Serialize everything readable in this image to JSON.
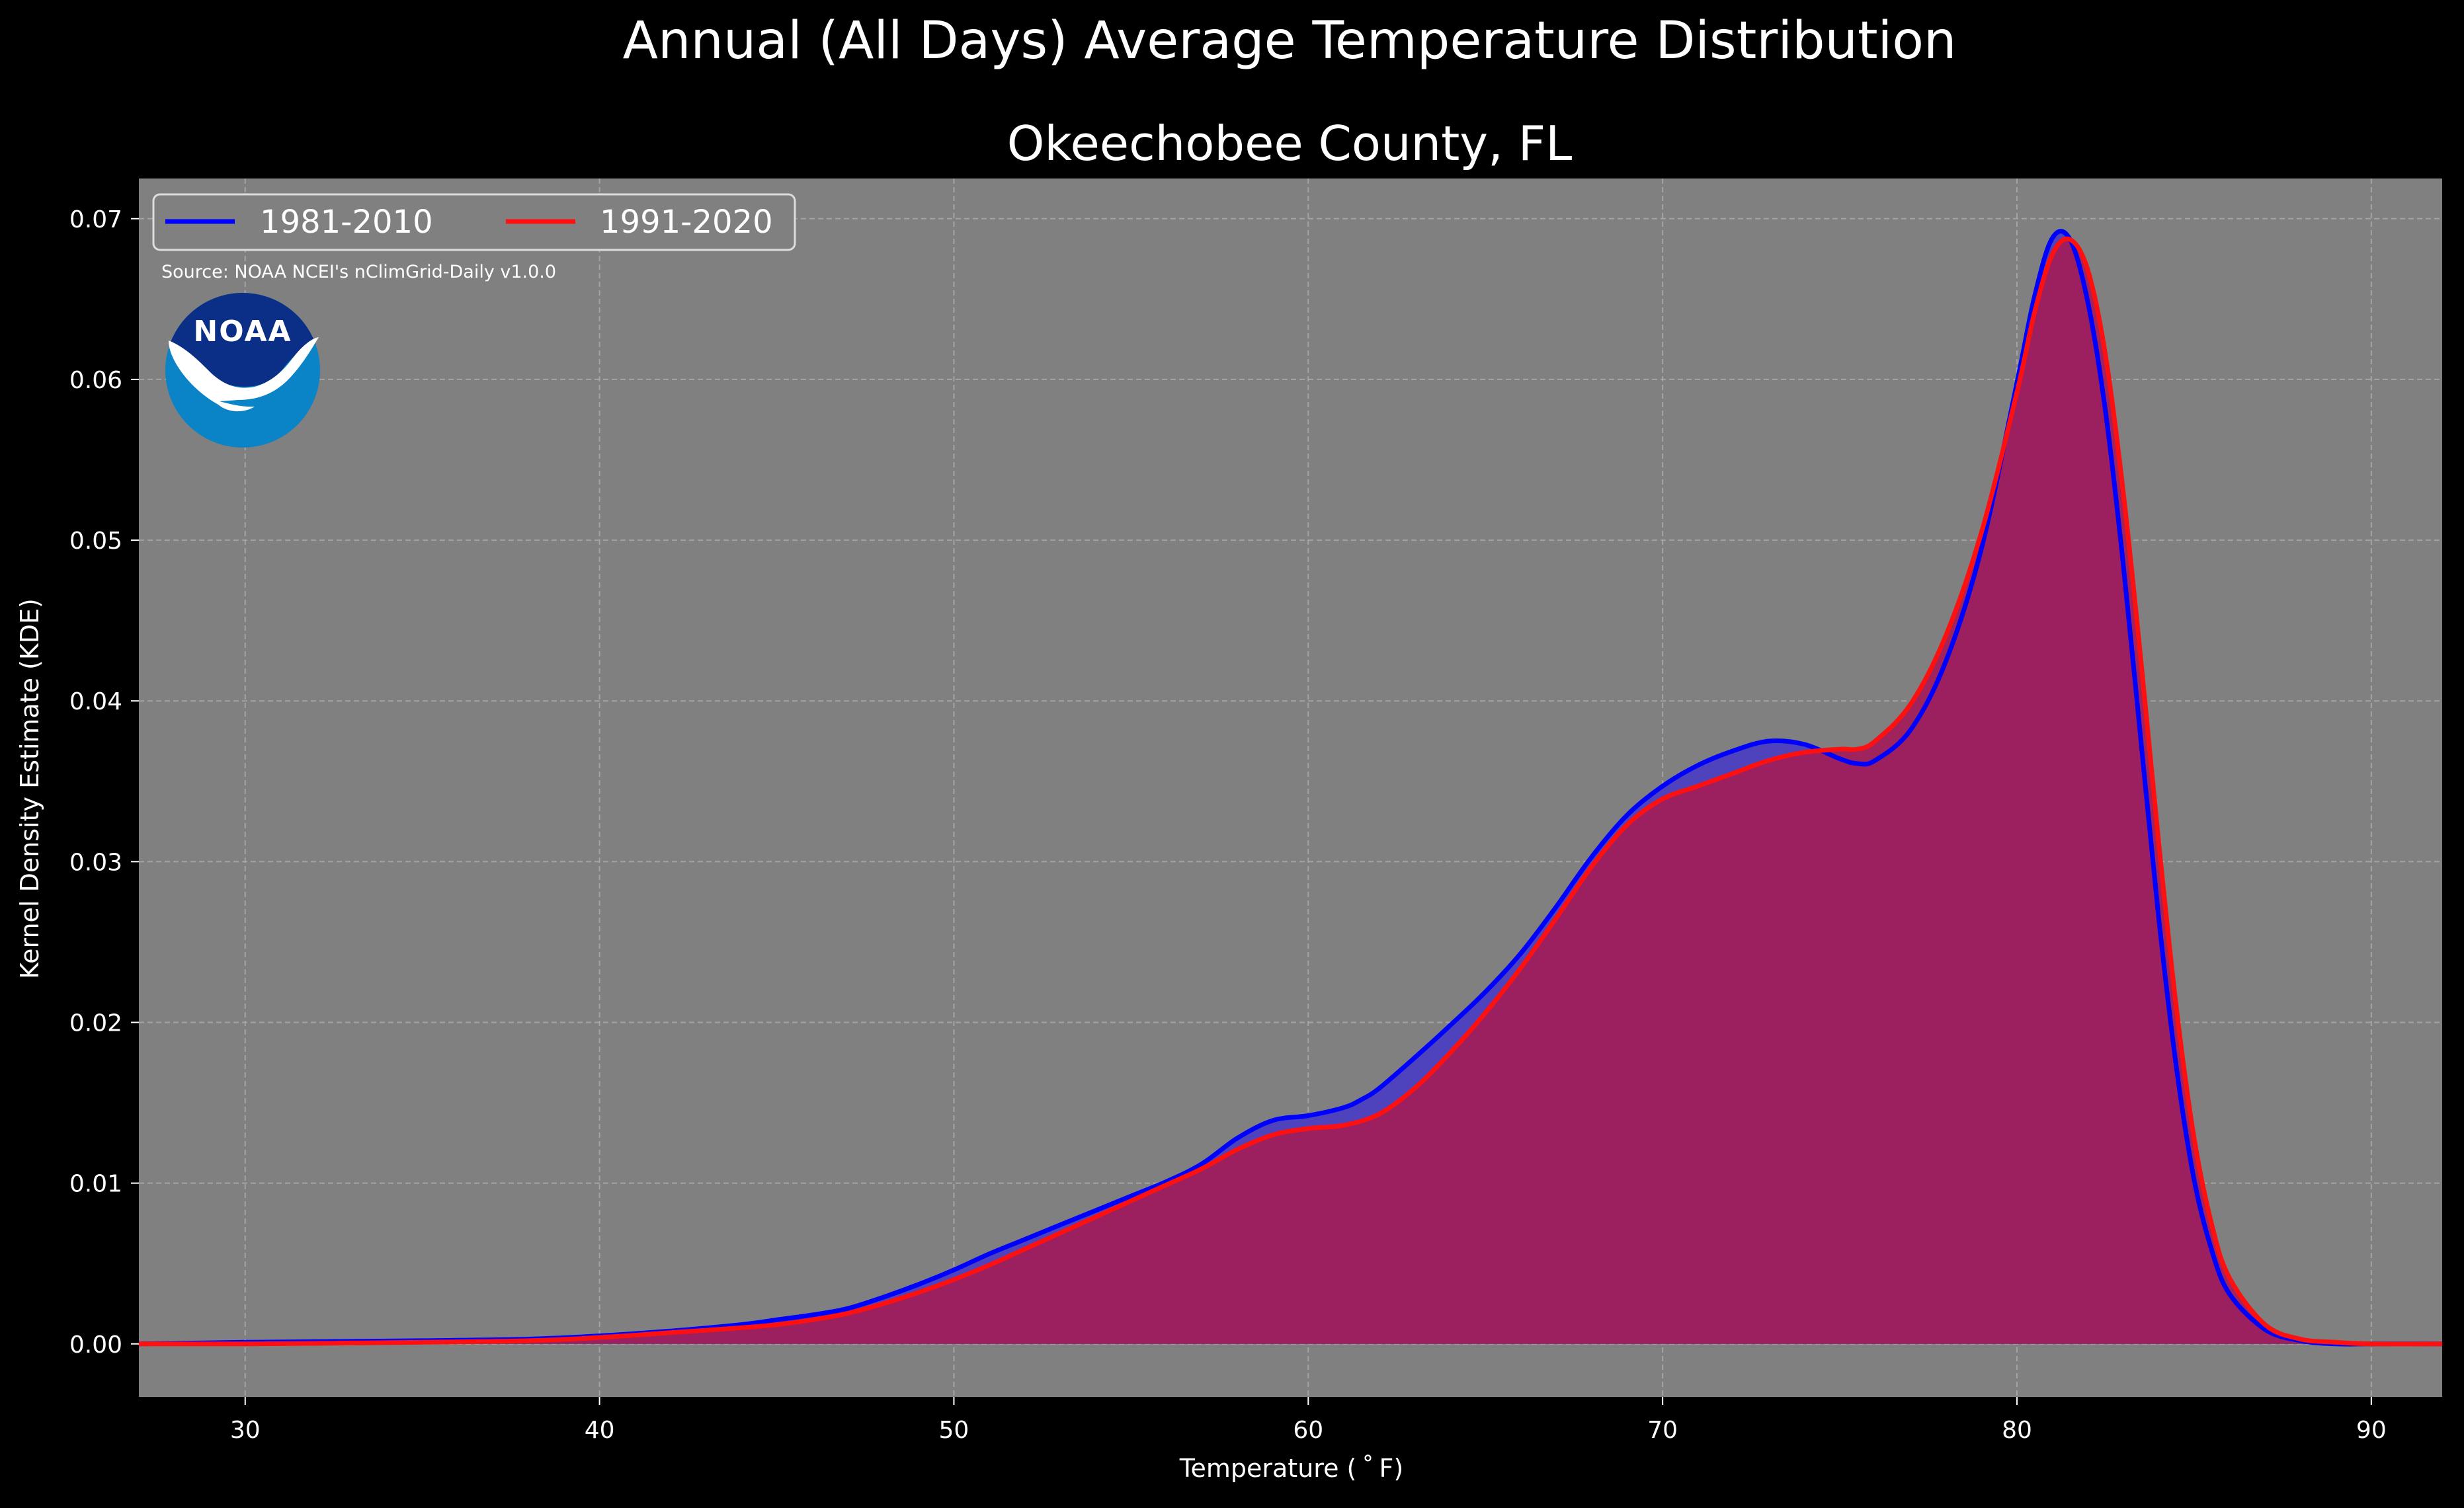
{
  "chart_data": {
    "type": "area",
    "suptitle": "Annual (All Days) Average Temperature Distribution",
    "title": "Okeechobee County, FL",
    "xlabel": "Temperature ($^\\circ$F)",
    "xlabel_display": "Temperature ( ˚ F)",
    "ylabel": "Kernel Density Estimate (KDE)",
    "xlim": [
      27,
      92
    ],
    "ylim": [
      -0.0033,
      0.0725
    ],
    "xticks": [
      30,
      40,
      50,
      60,
      70,
      80,
      90
    ],
    "yticks": [
      0.0,
      0.01,
      0.02,
      0.03,
      0.04,
      0.05,
      0.06,
      0.07
    ],
    "ytick_labels": [
      "0.00",
      "0.01",
      "0.02",
      "0.03",
      "0.04",
      "0.05",
      "0.06",
      "0.07"
    ],
    "grid": true,
    "legend_position": "top-left",
    "source_note": "Source: NOAA NCEI's nClimGrid-Daily v1.0.0",
    "logo_text": "NOAA",
    "colors": {
      "figure_background": "#000000",
      "axes_background": "#808080",
      "grid": "#b3b3b3",
      "text": "#ffffff",
      "fill_1981": "#4b3fbf",
      "fill_1991": "#a01e5a",
      "noaa_dark": "#0b2f86",
      "noaa_light": "#0a84c6"
    },
    "series": [
      {
        "name": "1981-2010",
        "color": "#0000ff",
        "x": [
          27,
          30,
          35,
          38,
          40,
          42,
          44,
          45,
          46,
          47,
          48,
          49,
          50,
          51,
          52,
          53,
          54,
          55,
          56,
          57,
          58,
          59,
          60,
          61,
          61.5,
          62,
          63,
          64,
          65,
          66,
          67,
          68,
          69,
          70,
          71,
          72,
          73,
          74,
          75,
          75.5,
          76,
          77,
          78,
          79,
          80,
          80.5,
          81,
          81.5,
          82,
          82.5,
          83,
          83.5,
          84,
          84.5,
          85,
          85.5,
          86,
          87,
          88,
          89,
          90,
          92
        ],
        "y": [
          0.0,
          0.0001,
          0.0002,
          0.0003,
          0.0005,
          0.0008,
          0.0012,
          0.0015,
          0.0018,
          0.0022,
          0.0029,
          0.0037,
          0.0046,
          0.0056,
          0.0065,
          0.0074,
          0.0083,
          0.0092,
          0.0101,
          0.0112,
          0.0128,
          0.0139,
          0.0142,
          0.0147,
          0.0152,
          0.0159,
          0.0178,
          0.0198,
          0.0219,
          0.0243,
          0.0272,
          0.0303,
          0.0329,
          0.0347,
          0.036,
          0.0369,
          0.0375,
          0.0373,
          0.0364,
          0.0361,
          0.0363,
          0.0382,
          0.0425,
          0.0495,
          0.0598,
          0.0652,
          0.0688,
          0.0687,
          0.0648,
          0.058,
          0.0485,
          0.0375,
          0.0265,
          0.0172,
          0.0102,
          0.0058,
          0.0031,
          0.0009,
          0.0002,
          0.0,
          0.0,
          0.0
        ]
      },
      {
        "name": "1991-2020",
        "color": "#ff1010",
        "x": [
          27,
          30,
          35,
          38,
          40,
          42,
          44,
          45,
          46,
          47,
          48,
          49,
          50,
          51,
          52,
          53,
          54,
          55,
          56,
          57,
          58,
          59,
          60,
          61,
          62,
          63,
          64,
          65,
          66,
          67,
          68,
          69,
          70,
          71,
          72,
          73,
          74,
          75,
          75.5,
          76,
          77,
          78,
          79,
          80,
          80.5,
          81,
          81.5,
          82,
          82.5,
          83,
          83.5,
          84,
          84.5,
          85,
          85.5,
          86,
          87,
          88,
          89,
          90,
          92
        ],
        "y": [
          0.0,
          0.0,
          0.0001,
          0.0002,
          0.0004,
          0.0007,
          0.001,
          0.0012,
          0.0015,
          0.0019,
          0.0025,
          0.0032,
          0.004,
          0.0049,
          0.0059,
          0.0069,
          0.0079,
          0.0089,
          0.0099,
          0.0109,
          0.0121,
          0.013,
          0.0134,
          0.0136,
          0.0143,
          0.0159,
          0.0181,
          0.0206,
          0.0234,
          0.0265,
          0.0297,
          0.0323,
          0.0339,
          0.0347,
          0.0355,
          0.0363,
          0.0368,
          0.037,
          0.037,
          0.0375,
          0.0398,
          0.0441,
          0.0505,
          0.0592,
          0.0642,
          0.0678,
          0.0687,
          0.0668,
          0.0615,
          0.053,
          0.0425,
          0.0312,
          0.0209,
          0.0128,
          0.0074,
          0.0041,
          0.0012,
          0.0003,
          0.0001,
          0.0,
          0.0
        ]
      }
    ]
  }
}
